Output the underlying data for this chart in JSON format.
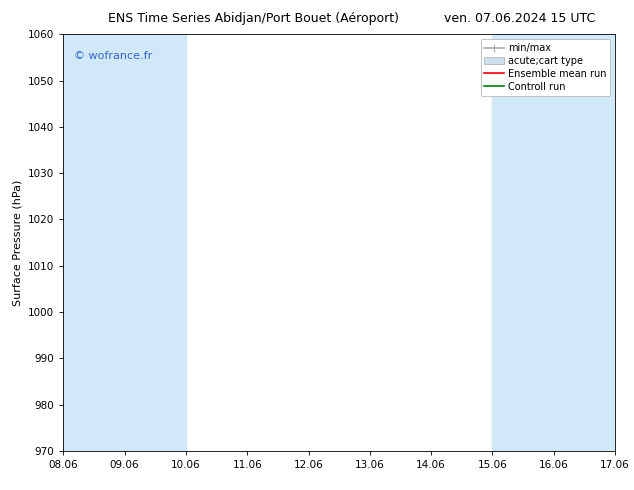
{
  "title_left": "ENS Time Series Abidjan/Port Bouet (Aéroport)",
  "title_right": "ven. 07.06.2024 15 UTC",
  "ylabel": "Surface Pressure (hPa)",
  "ylim": [
    970,
    1060
  ],
  "yticks": [
    970,
    980,
    990,
    1000,
    1010,
    1020,
    1030,
    1040,
    1050,
    1060
  ],
  "xlim_start": 0,
  "xlim_end": 9,
  "xtick_labels": [
    "08.06",
    "09.06",
    "10.06",
    "11.06",
    "12.06",
    "13.06",
    "14.06",
    "15.06",
    "16.06",
    "17.06"
  ],
  "xtick_positions": [
    0,
    1,
    2,
    3,
    4,
    5,
    6,
    7,
    8,
    9
  ],
  "watermark": "© wofrance.fr",
  "watermark_color": "#3366cc",
  "shaded_bands": [
    {
      "x_start": 0,
      "x_end": 1,
      "color": "#d0e8f8"
    },
    {
      "x_start": 1,
      "x_end": 2,
      "color": "#d0e8f8"
    },
    {
      "x_start": 7,
      "x_end": 8,
      "color": "#d0e8f8"
    },
    {
      "x_start": 8,
      "x_end": 9,
      "color": "#d0e8f8"
    }
  ],
  "legend_entries": [
    {
      "label": "min/max",
      "color": "#aaaaaa",
      "lw": 1.2,
      "linestyle": "-"
    },
    {
      "label": "acute;cart type",
      "color": "#cce0f0",
      "lw": 6,
      "linestyle": "-"
    },
    {
      "label": "Ensemble mean run",
      "color": "red",
      "lw": 1.2,
      "linestyle": "-"
    },
    {
      "label": "Controll run",
      "color": "green",
      "lw": 1.2,
      "linestyle": "-"
    }
  ],
  "background_color": "#ffffff",
  "plot_bg_color": "#ffffff",
  "title_fontsize": 9,
  "tick_fontsize": 7.5,
  "ylabel_fontsize": 8,
  "legend_fontsize": 7,
  "watermark_fontsize": 8
}
